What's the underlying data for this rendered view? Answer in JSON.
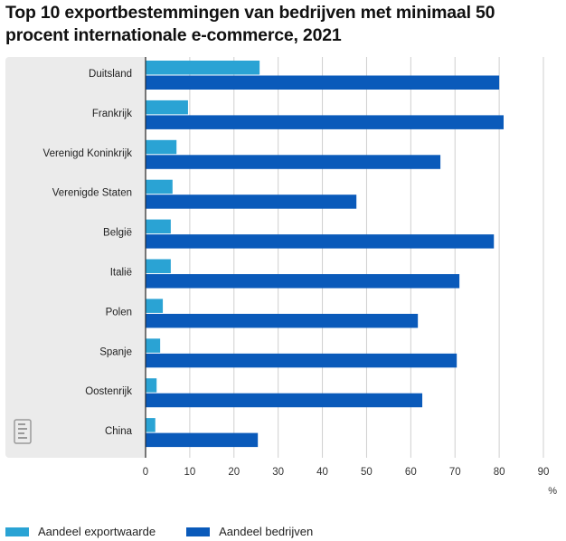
{
  "chart_data": {
    "type": "bar",
    "orientation": "horizontal",
    "title": "Top 10 exportbestemmingen van bedrijven met minimaal 50 procent internationale e-commerce, 2021",
    "categories": [
      "Duitsland",
      "Frankrijk",
      "Verenigd Koninkrijk",
      "Verenigde Staten",
      "België",
      "Italië",
      "Polen",
      "Spanje",
      "Oostenrijk",
      "China"
    ],
    "series": [
      {
        "name": "Aandeel exportwaarde",
        "color": "#2aa3d4",
        "values": [
          25.8,
          9.6,
          7.0,
          6.1,
          5.7,
          5.7,
          3.9,
          3.3,
          2.5,
          2.2
        ]
      },
      {
        "name": "Aandeel bedrijven",
        "color": "#0a5aba",
        "values": [
          80.0,
          81.0,
          66.7,
          47.7,
          78.8,
          71.0,
          61.6,
          70.4,
          62.6,
          25.4
        ]
      }
    ],
    "xlabel": "",
    "ylabel": "",
    "unit_label": "%",
    "xlim": [
      0,
      90
    ],
    "xticks": [
      0,
      10,
      20,
      30,
      40,
      50,
      60,
      70,
      80,
      90
    ],
    "grid": true,
    "legend": "bottom-left"
  },
  "logo": "cbs-logo-icon"
}
